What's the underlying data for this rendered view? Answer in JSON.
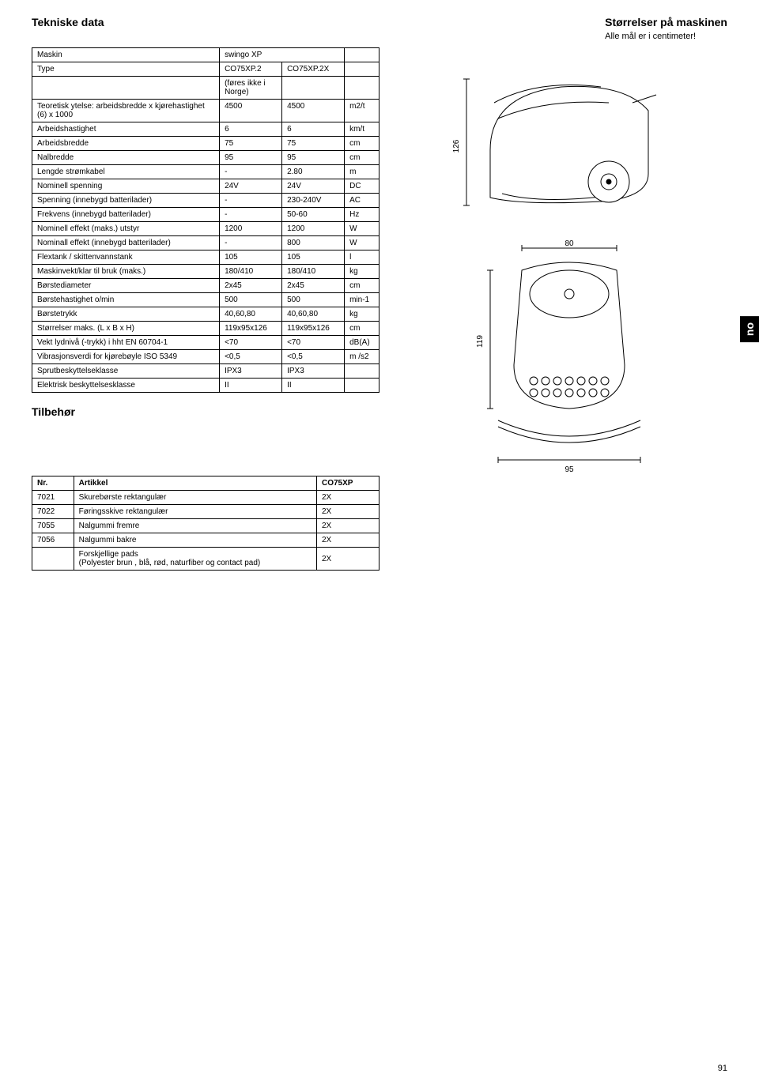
{
  "headings": {
    "left": "Tekniske data",
    "right": "Størrelser på maskinen",
    "right_sub": "Alle mål er i centimeter!"
  },
  "spec_header": {
    "maskin_label": "Maskin",
    "maskin_value": "swingo XP",
    "type_label": "Type",
    "type_v1": "CO75XP.2",
    "type_v2": "CO75XP.2X",
    "note": "(føres ikke i Norge)"
  },
  "spec_rows": [
    {
      "param": "Teoretisk ytelse: arbeidsbredde x kjørehastighet (6) x 1000",
      "v1": "4500",
      "v2": "4500",
      "unit": "m2/t"
    },
    {
      "param": "Arbeidshastighet",
      "v1": "6",
      "v2": "6",
      "unit": "km/t"
    },
    {
      "param": "Arbeidsbredde",
      "v1": "75",
      "v2": "75",
      "unit": "cm"
    },
    {
      "param": "Nalbredde",
      "v1": "95",
      "v2": "95",
      "unit": "cm"
    },
    {
      "param": "Lengde strømkabel",
      "v1": "-",
      "v2": "2.80",
      "unit": "m"
    },
    {
      "param": "Nominell spenning",
      "v1": "24V",
      "v2": "24V",
      "unit": "DC"
    },
    {
      "param": "Spenning (innebygd batterilader)",
      "v1": "-",
      "v2": "230-240V",
      "unit": "AC"
    },
    {
      "param": "Frekvens (innebygd batterilader)",
      "v1": "-",
      "v2": "50-60",
      "unit": "Hz"
    },
    {
      "param": "Nominell effekt (maks.) utstyr",
      "v1": "1200",
      "v2": "1200",
      "unit": "W"
    },
    {
      "param": "Nominall effekt (innebygd batterilader)",
      "v1": "-",
      "v2": "800",
      "unit": "W"
    },
    {
      "param": "Flextank / skittenvannstank",
      "v1": "105",
      "v2": "105",
      "unit": "l"
    },
    {
      "param": "Maskinvekt/klar til bruk (maks.)",
      "v1": "180/410",
      "v2": "180/410",
      "unit": "kg"
    },
    {
      "param": "Børstediameter",
      "v1": "2x45",
      "v2": "2x45",
      "unit": "cm"
    },
    {
      "param": "Børstehastighet o/min",
      "v1": "500",
      "v2": "500",
      "unit": "min-1"
    },
    {
      "param": "Børstetrykk",
      "v1": "40,60,80",
      "v2": "40,60,80",
      "unit": "kg"
    },
    {
      "param": "Størrelser maks. (L x B x H)",
      "v1": "119x95x126",
      "v2": "119x95x126",
      "unit": "cm"
    },
    {
      "param": "Vekt lydnivå (-trykk) i hht EN 60704-1",
      "v1": "<70",
      "v2": "<70",
      "unit": "dB(A)"
    },
    {
      "param": "Vibrasjonsverdi for kjørebøyle ISO 5349",
      "v1": "<0,5",
      "v2": "<0,5",
      "unit": "m /s2"
    },
    {
      "param": "Sprutbeskyttelseklasse",
      "v1": "IPX3",
      "v2": "IPX3",
      "unit": ""
    },
    {
      "param": "Elektrisk beskyttelsesklasse",
      "v1": "II",
      "v2": "II",
      "unit": ""
    }
  ],
  "accessories": {
    "heading": "Tilbehør",
    "header": {
      "nr": "Nr.",
      "artikkel": "Artikkel",
      "co": "CO75XP"
    },
    "rows": [
      {
        "nr": "7021",
        "art": "Skurebørste rektangulær",
        "co": "2X"
      },
      {
        "nr": "7022",
        "art": "Føringsskive rektangulær",
        "co": "2X"
      },
      {
        "nr": "7055",
        "art": "Nalgummi fremre",
        "co": "2X"
      },
      {
        "nr": "7056",
        "art": "Nalgummi bakre",
        "co": "2X"
      },
      {
        "nr": "",
        "art": "Forskjellige pads\n(Polyester brun , blå, rød, naturfiber og contact pad)",
        "co": "2X"
      }
    ]
  },
  "dimensions": {
    "height": "126",
    "width_top": "80",
    "length": "119",
    "width_bottom": "95"
  },
  "lang_tab": "no",
  "page_number": "91",
  "colors": {
    "text": "#000000",
    "border": "#000000",
    "background": "#ffffff",
    "tab_bg": "#000000",
    "tab_fg": "#ffffff",
    "drawing_stroke": "#000000",
    "drawing_fill": "#ffffff"
  }
}
